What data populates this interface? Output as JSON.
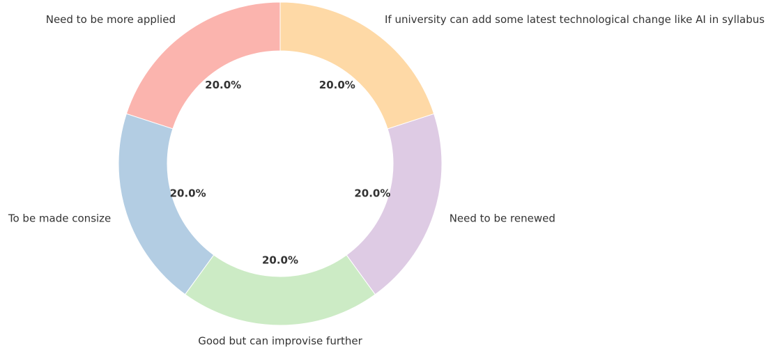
{
  "chart_data": {
    "type": "donut",
    "categories": [
      "Need to be more applied",
      "To be made consize",
      "Good but can improvise further",
      "Need to be renewed",
      "If university can add some latest technological change like AI in syllabus"
    ],
    "values": [
      20,
      20,
      20,
      20,
      20
    ],
    "value_labels": [
      "20.0%",
      "20.0%",
      "20.0%",
      "20.0%",
      "20.0%"
    ],
    "colors": [
      "#fbb4ae",
      "#b3cde3",
      "#ccebc5",
      "#decbe4",
      "#fed9a6"
    ]
  }
}
